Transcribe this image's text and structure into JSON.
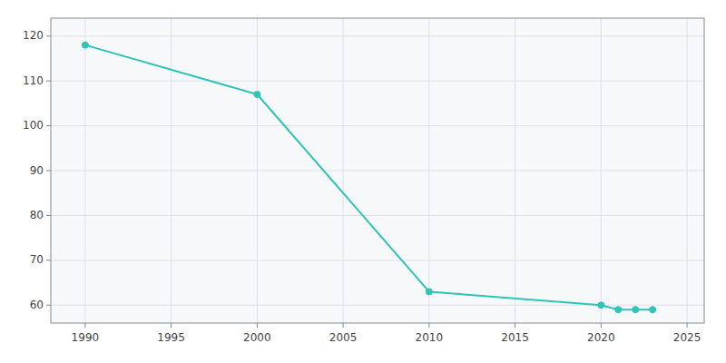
{
  "chart_data": {
    "type": "line",
    "x": [
      1990,
      2000,
      2010,
      2020,
      2021,
      2022,
      2023
    ],
    "values": [
      118,
      107,
      63,
      60,
      59,
      59,
      59
    ],
    "color": "#2ec4b6",
    "marker": "circle",
    "xlim": [
      1988,
      2026
    ],
    "ylim": [
      56,
      124
    ],
    "xticks": [
      1990,
      1995,
      2000,
      2005,
      2010,
      2015,
      2020,
      2025
    ],
    "yticks": [
      60,
      70,
      80,
      90,
      100,
      110,
      120
    ],
    "grid": true
  }
}
